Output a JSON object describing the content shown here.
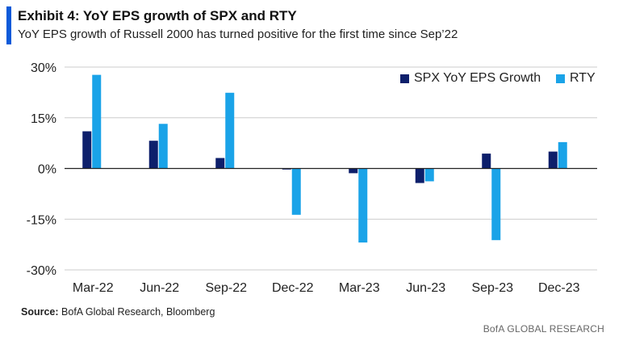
{
  "header": {
    "title": "Exhibit 4: YoY EPS growth of SPX and RTY",
    "subtitle": "YoY EPS growth of Russell 2000 has turned positive for the first time since Sep’22"
  },
  "footer": {
    "source_label": "Source:",
    "source_text": "BofA Global Research, Bloomberg",
    "brand": "BofA GLOBAL RESEARCH"
  },
  "colors": {
    "spx": "#0d1f6b",
    "rty": "#1aa3e8",
    "grid": "#cccccc",
    "axis": "#222222",
    "accent": "#0b5ad9"
  },
  "chart_data": {
    "type": "bar",
    "title": "Exhibit 4: YoY EPS growth of SPX and RTY",
    "xlabel": "",
    "ylabel": "",
    "ylim": [
      -30,
      30
    ],
    "yticks": [
      30,
      15,
      0,
      -15,
      -30
    ],
    "ytick_labels": [
      "30%",
      "15%",
      "0%",
      "-15%",
      "-30%"
    ],
    "categories": [
      "Mar-22",
      "Jun-22",
      "Sep-22",
      "Dec-22",
      "Mar-23",
      "Jun-23",
      "Sep-23",
      "Dec-23"
    ],
    "legend_position": "top-right",
    "series": [
      {
        "name": "SPX YoY EPS Growth",
        "values": [
          11,
          8.2,
          3.1,
          -0.3,
          -1.4,
          -4.3,
          4.4,
          5.0
        ]
      },
      {
        "name": "RTY",
        "values": [
          27.7,
          13.2,
          22.4,
          -13.7,
          -21.9,
          -3.8,
          -21.2,
          7.8
        ]
      }
    ]
  }
}
